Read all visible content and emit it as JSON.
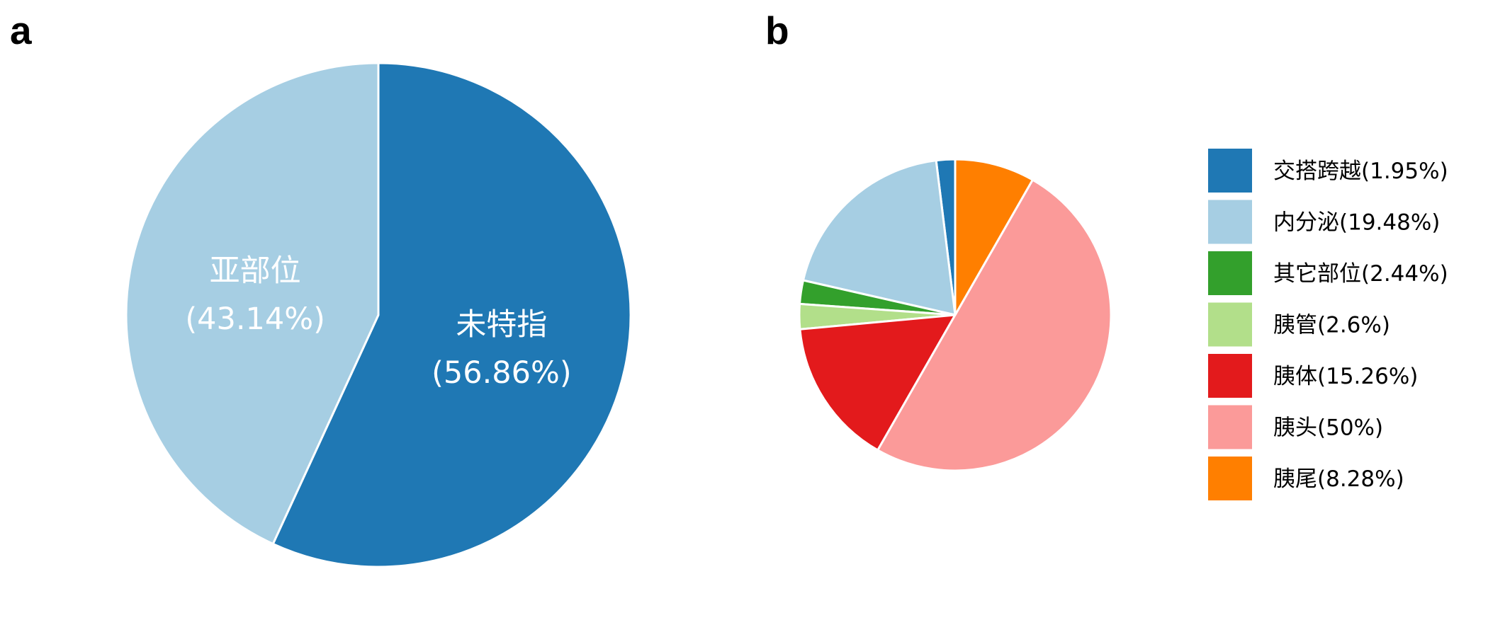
{
  "panel_a": {
    "letter": "a"
  },
  "panel_b": {
    "letter": "b"
  },
  "chart_data": [
    {
      "type": "pie",
      "title": "",
      "slices": [
        {
          "label": "未特指",
          "value": 56.86,
          "percent_text": "(56.86%)",
          "color": "#1F78B4"
        },
        {
          "label": "亚部位",
          "value": 43.14,
          "percent_text": "(43.14%)",
          "color": "#A6CEE3"
        }
      ],
      "start_angle_deg": 0,
      "direction": "clockwise",
      "labels_on_slices": true,
      "slice_border_color": "#ffffff",
      "legend": "none"
    },
    {
      "type": "pie",
      "title": "",
      "slices": [
        {
          "label": "交搭跨越",
          "value": 1.95,
          "legend_text": "交搭跨越(1.95%)",
          "color": "#1F78B4"
        },
        {
          "label": "内分泌",
          "value": 19.48,
          "legend_text": "内分泌(19.48%)",
          "color": "#A6CEE3"
        },
        {
          "label": "其它部位",
          "value": 2.44,
          "legend_text": "其它部位(2.44%)",
          "color": "#33A02C"
        },
        {
          "label": "胰管",
          "value": 2.6,
          "legend_text": "胰管(2.6%)",
          "color": "#B2DF8A"
        },
        {
          "label": "胰体",
          "value": 15.26,
          "legend_text": "胰体(15.26%)",
          "color": "#E31A1C"
        },
        {
          "label": "胰头",
          "value": 50,
          "legend_text": "胰头(50%)",
          "color": "#FB9A99"
        },
        {
          "label": "胰尾",
          "value": 8.28,
          "legend_text": "胰尾(8.28%)",
          "color": "#FF7F00"
        }
      ],
      "start_angle_deg": 0,
      "direction": "counterclockwise",
      "labels_on_slices": false,
      "slice_border_color": "#ffffff",
      "legend": "right"
    }
  ]
}
